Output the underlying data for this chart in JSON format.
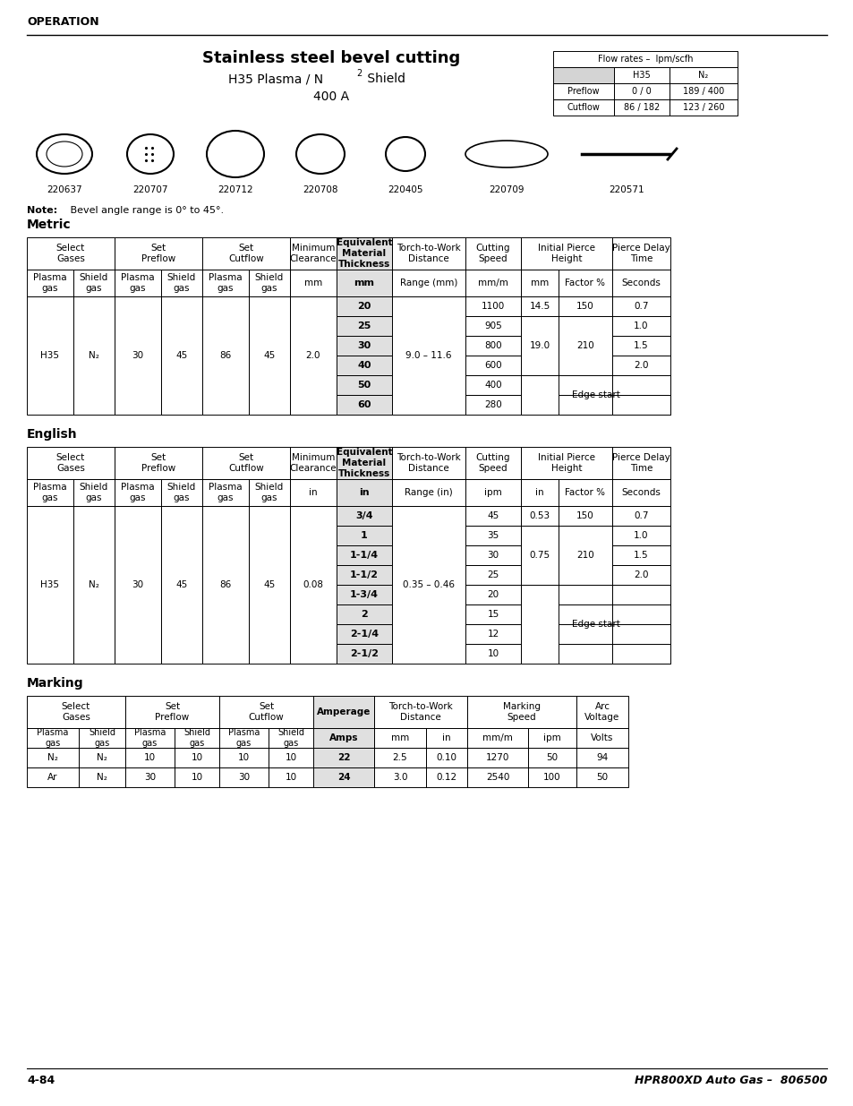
{
  "title": "Stainless steel bevel cutting",
  "section_label": "OPERATION",
  "flow_table_title": "Flow rates –  lpm/scfh",
  "flow_rows": [
    [
      "Preflow",
      "0 / 0",
      "189 / 400"
    ],
    [
      "Cutflow",
      "86 / 182",
      "123 / 260"
    ]
  ],
  "part_numbers": [
    "220637",
    "220707",
    "220712",
    "220708",
    "220405",
    "220709",
    "220571"
  ],
  "note": "Bevel angle range is 0° to 45°.",
  "metric_section": "Metric",
  "metric_data_thickness": [
    "20",
    "25",
    "30",
    "40",
    "50",
    "60"
  ],
  "metric_data_speed": [
    "1100",
    "905",
    "800",
    "600",
    "400",
    "280"
  ],
  "metric_range": "9.0 – 11.6",
  "metric_pierce_h1_mm": "14.5",
  "metric_pierce_h2_mm": "19.0",
  "metric_pierce_h1_factor": "150",
  "metric_pierce_h2_factor": "210",
  "metric_pierce_delays": [
    "0.7",
    "1.0",
    "1.5",
    "2.0"
  ],
  "metric_plasma": "H35",
  "metric_shield": "N₂",
  "metric_preflow_p": "30",
  "metric_preflow_s": "45",
  "metric_cutflow_p": "86",
  "metric_cutflow_s": "45",
  "metric_clearance": "2.0",
  "english_section": "English",
  "english_data_thickness": [
    "3/4",
    "1",
    "1-1/4",
    "1-1/2",
    "1-3/4",
    "2",
    "2-1/4",
    "2-1/2"
  ],
  "english_data_speed": [
    "45",
    "35",
    "30",
    "25",
    "20",
    "15",
    "12",
    "10"
  ],
  "english_range": "0.35 – 0.46",
  "english_pierce_h1_in": "0.53",
  "english_pierce_h2_in": "0.75",
  "english_pierce_h1_factor": "150",
  "english_pierce_h2_factor": "210",
  "english_pierce_delays": [
    "0.7",
    "1.0",
    "1.5",
    "2.0"
  ],
  "english_plasma": "H35",
  "english_shield": "N₂",
  "english_preflow_p": "30",
  "english_preflow_s": "45",
  "english_cutflow_p": "86",
  "english_cutflow_s": "45",
  "english_clearance": "0.08",
  "marking_section": "Marking",
  "marking_rows": [
    [
      "N₂",
      "N₂",
      "10",
      "10",
      "10",
      "10",
      "22",
      "2.5",
      "0.10",
      "1270",
      "50",
      "94"
    ],
    [
      "Ar",
      "N₂",
      "30",
      "10",
      "30",
      "10",
      "24",
      "3.0",
      "0.12",
      "2540",
      "100",
      "50"
    ]
  ],
  "footer_left": "4-84",
  "footer_right": "HPR800XD Auto Gas –  806500",
  "bg_color": "#ffffff",
  "header_bg": "#d4d4d4",
  "bold_col_bg": "#e0e0e0"
}
